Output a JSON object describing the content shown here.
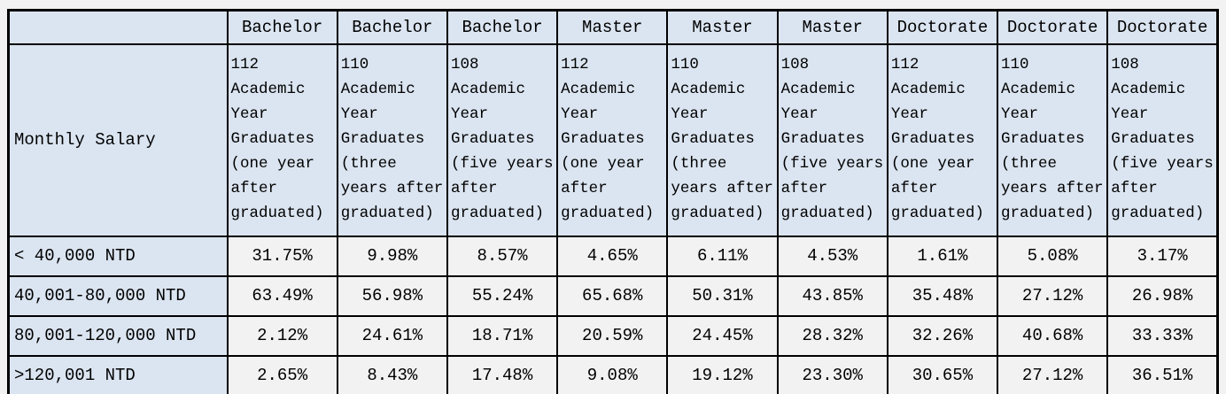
{
  "table": {
    "corner_label": "",
    "row_header_title": "Monthly Salary",
    "degree_headers": [
      "Bachelor",
      "Bachelor",
      "Bachelor",
      "Master",
      "Master",
      "Master",
      "Doctorate",
      "Doctorate",
      "Doctorate"
    ],
    "cohort_headers": [
      "112\nAcademic\nYear\nGraduates\n(one year\nafter\ngraduated)",
      "110\nAcademic\nYear\nGraduates\n(three\nyears after\ngraduated)",
      "108\nAcademic\nYear\nGraduates\n(five years\nafter\ngraduated)",
      "112\nAcademic\nYear\nGraduates\n(one year\nafter\ngraduated)",
      "110\nAcademic\nYear\nGraduates\n(three\nyears after\ngraduated)",
      "108\nAcademic\nYear\nGraduates\n(five years\nafter\ngraduated)",
      "112\nAcademic\nYear\nGraduates\n(one year\nafter\ngraduated)",
      "110\nAcademic\nYear\nGraduates\n(three\nyears after\ngraduated)",
      "108\nAcademic\nYear\nGraduates\n(five years\nafter\ngraduated)"
    ],
    "rows": [
      {
        "label": "< 40,000 NTD",
        "values": [
          "31.75%",
          "9.98%",
          "8.57%",
          "4.65%",
          "6.11%",
          "4.53%",
          "1.61%",
          "5.08%",
          "3.17%"
        ]
      },
      {
        "label": "40,001-80,000 NTD",
        "values": [
          "63.49%",
          "56.98%",
          "55.24%",
          "65.68%",
          "50.31%",
          "43.85%",
          "35.48%",
          "27.12%",
          "26.98%"
        ]
      },
      {
        "label": "80,001-120,000 NTD",
        "values": [
          "2.12%",
          "24.61%",
          "18.71%",
          "20.59%",
          "24.45%",
          "28.32%",
          "32.26%",
          "40.68%",
          "33.33%"
        ]
      },
      {
        "label": ">120,001 NTD",
        "values": [
          "2.65%",
          "8.43%",
          "17.48%",
          "9.08%",
          "19.12%",
          "23.30%",
          "30.65%",
          "27.12%",
          "36.51%"
        ]
      }
    ],
    "colors": {
      "header_bg": "#dbe5f1",
      "data_cell_bg": "#f2f2f2",
      "page_bg": "#f2f2f2",
      "border": "#000000",
      "text": "#000000"
    }
  },
  "chart_data": {
    "type": "table",
    "title": "Monthly Salary distribution of graduates by degree and academic year cohort",
    "column_groups": [
      "Bachelor",
      "Bachelor",
      "Bachelor",
      "Master",
      "Master",
      "Master",
      "Doctorate",
      "Doctorate",
      "Doctorate"
    ],
    "columns": [
      "112 Academic Year Graduates (one year after graduated)",
      "110 Academic Year Graduates (three years after graduated)",
      "108 Academic Year Graduates (five years after graduated)",
      "112 Academic Year Graduates (one year after graduated)",
      "110 Academic Year Graduates (three years after graduated)",
      "108 Academic Year Graduates (five years after graduated)",
      "112 Academic Year Graduates (one year after graduated)",
      "110 Academic Year Graduates (three years after graduated)",
      "108 Academic Year Graduates (five years after graduated)"
    ],
    "row_label_header": "Monthly Salary",
    "row_labels": [
      "< 40,000 NTD",
      "40,001-80,000 NTD",
      "80,001-120,000 NTD",
      ">120,001 NTD"
    ],
    "values_percent": [
      [
        31.75,
        9.98,
        8.57,
        4.65,
        6.11,
        4.53,
        1.61,
        5.08,
        3.17
      ],
      [
        63.49,
        56.98,
        55.24,
        65.68,
        50.31,
        43.85,
        35.48,
        27.12,
        26.98
      ],
      [
        2.12,
        24.61,
        18.71,
        20.59,
        24.45,
        28.32,
        32.26,
        40.68,
        33.33
      ],
      [
        2.65,
        8.43,
        17.48,
        9.08,
        19.12,
        23.3,
        30.65,
        27.12,
        36.51
      ]
    ]
  }
}
